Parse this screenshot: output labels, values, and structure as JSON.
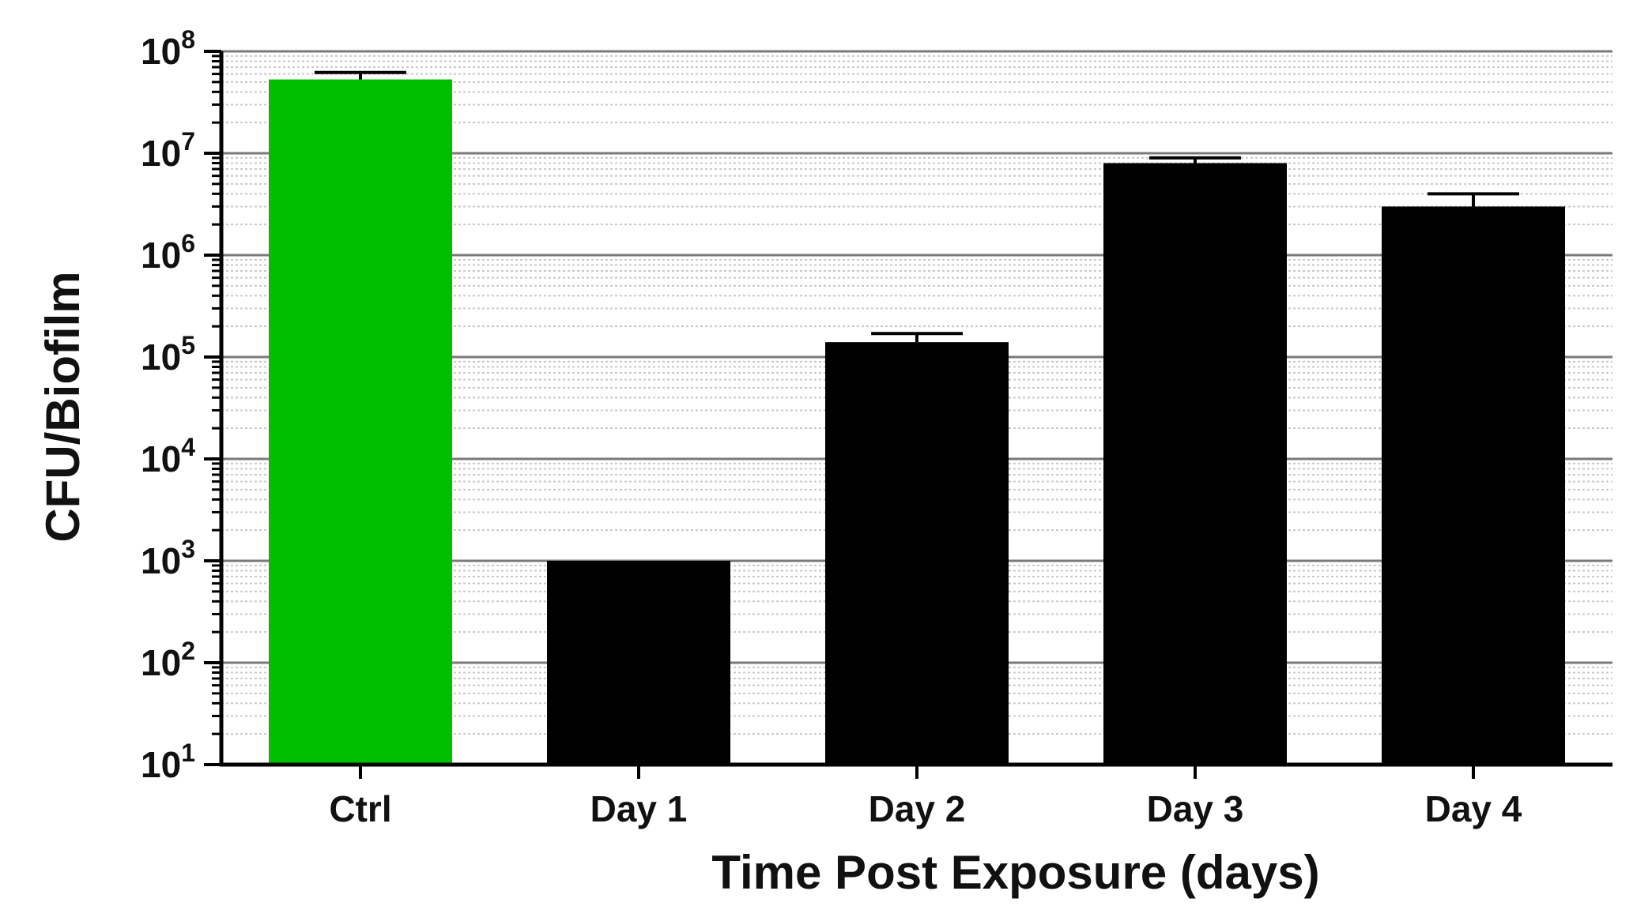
{
  "chart_data": {
    "type": "bar",
    "title": "",
    "xlabel": "Time Post Exposure (days)",
    "ylabel": "CFU/Biofilm",
    "yscale": "log",
    "ylim": [
      10,
      100000000
    ],
    "y_tick_exponents": [
      1,
      2,
      3,
      4,
      5,
      6,
      7,
      8
    ],
    "y_tick_base": "10",
    "grid": "major and minor horizontal",
    "categories": [
      "Ctrl",
      "Day 1",
      "Day 2",
      "Day 3",
      "Day 4"
    ],
    "values": [
      53000000,
      1000,
      140000,
      8000000,
      3000000
    ],
    "error_upper": [
      62000000,
      1000,
      170000,
      9000000,
      4000000
    ],
    "bar_colors": [
      "#00bf00",
      "#000000",
      "#000000",
      "#000000",
      "#000000"
    ]
  }
}
